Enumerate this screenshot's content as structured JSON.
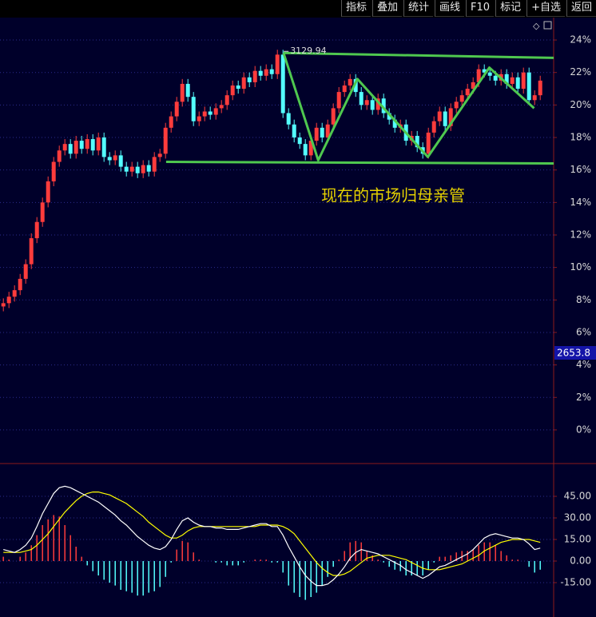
{
  "toolbar": [
    "指标",
    "叠加",
    "统计",
    "画线",
    "F10",
    "标记",
    "+自选",
    "返回"
  ],
  "chart_data": [
    {
      "type": "candlestick",
      "annotation": "现在的市场归母亲管",
      "peak_label": "3129.94",
      "price_tag": "2653.8",
      "up_color": "#ff3c3c",
      "down_color": "#54ffff",
      "grid": true,
      "xlim": [
        -0.6,
        98.4
      ],
      "ylim": [
        -2.07,
        25.38
      ],
      "yticks": [
        {
          "value": 0,
          "label": "0%"
        },
        {
          "value": 2,
          "label": "2%"
        },
        {
          "value": 4,
          "label": "4%"
        },
        {
          "value": 6,
          "label": "6%"
        },
        {
          "value": 8,
          "label": "8%"
        },
        {
          "value": 10,
          "label": "10%"
        },
        {
          "value": 12,
          "label": "12%"
        },
        {
          "value": 14,
          "label": "14%"
        },
        {
          "value": 16,
          "label": "16%"
        },
        {
          "value": 18,
          "label": "18%"
        },
        {
          "value": 20,
          "label": "20%"
        },
        {
          "value": 22,
          "label": "22%"
        },
        {
          "value": 24,
          "label": "24%"
        }
      ],
      "open": [
        7.6,
        7.8,
        8.2,
        8.6,
        9.3,
        10.2,
        11.8,
        12.8,
        14.0,
        15.3,
        16.5,
        17.2,
        17.6,
        17.0,
        17.8,
        17.3,
        17.9,
        17.2,
        18.0,
        16.8,
        16.6,
        16.9,
        16.2,
        15.9,
        16.2,
        15.8,
        16.3,
        15.9,
        16.8,
        17.0,
        18.6,
        19.3,
        20.2,
        21.3,
        20.5,
        19.0,
        19.3,
        19.6,
        19.4,
        19.8,
        20.0,
        20.6,
        21.2,
        21.0,
        21.7,
        21.4,
        22.1,
        21.8,
        22.2,
        21.9,
        23.1,
        19.5,
        18.8,
        18.0,
        17.6,
        16.9,
        17.8,
        18.6,
        18.0,
        18.8,
        19.8,
        20.8,
        21.2,
        21.6,
        20.8,
        20.0,
        20.3,
        19.7,
        20.4,
        19.5,
        19.1,
        18.6,
        18.8,
        17.8,
        18.1,
        17.4,
        17.0,
        18.3,
        19.0,
        19.6,
        18.7,
        19.8,
        20.2,
        20.6,
        21.0,
        21.4,
        22.2,
        22.0,
        21.8,
        21.5,
        21.9,
        21.3,
        21.7,
        21.0,
        22.0,
        20.3,
        20.6
      ],
      "high": [
        8.1,
        8.5,
        8.9,
        9.6,
        10.5,
        12.1,
        13.1,
        14.3,
        15.6,
        16.8,
        17.5,
        17.9,
        17.9,
        18.1,
        18.1,
        18.2,
        18.2,
        18.3,
        18.3,
        17.1,
        17.2,
        17.2,
        16.5,
        16.5,
        16.5,
        16.6,
        16.6,
        17.1,
        17.3,
        18.9,
        19.6,
        20.5,
        21.6,
        21.6,
        20.8,
        19.6,
        19.9,
        19.9,
        20.1,
        20.3,
        20.9,
        21.5,
        21.5,
        22.0,
        22.0,
        22.4,
        22.4,
        22.5,
        22.5,
        23.4,
        23.4,
        19.8,
        19.1,
        18.3,
        17.9,
        18.1,
        18.9,
        18.9,
        19.1,
        20.1,
        21.1,
        21.5,
        21.9,
        21.9,
        21.1,
        20.6,
        20.6,
        20.7,
        20.7,
        19.8,
        19.4,
        19.1,
        19.1,
        18.4,
        18.4,
        17.7,
        18.6,
        19.3,
        19.9,
        19.9,
        20.1,
        20.5,
        20.9,
        21.3,
        21.7,
        22.5,
        22.5,
        22.3,
        22.1,
        22.2,
        22.2,
        22.0,
        22.0,
        22.3,
        22.3,
        20.9,
        21.8
      ],
      "low": [
        7.3,
        7.5,
        7.9,
        8.3,
        9.0,
        9.9,
        11.5,
        12.5,
        13.7,
        15.0,
        16.2,
        16.9,
        16.7,
        16.7,
        17.0,
        17.0,
        16.9,
        16.9,
        16.5,
        16.3,
        16.3,
        15.9,
        15.6,
        15.6,
        15.5,
        15.5,
        15.6,
        15.6,
        16.5,
        16.7,
        18.3,
        19.0,
        19.9,
        20.2,
        18.7,
        18.7,
        19.0,
        19.1,
        19.1,
        19.5,
        19.7,
        20.3,
        20.7,
        20.7,
        21.1,
        21.1,
        21.5,
        21.5,
        21.6,
        21.6,
        19.2,
        18.5,
        17.7,
        17.3,
        16.6,
        16.6,
        17.5,
        17.7,
        17.7,
        18.5,
        19.5,
        20.5,
        20.9,
        20.5,
        19.7,
        19.7,
        19.4,
        19.4,
        19.2,
        18.8,
        18.3,
        18.3,
        17.5,
        17.5,
        17.1,
        16.7,
        16.7,
        18.0,
        18.7,
        18.4,
        18.4,
        19.5,
        19.9,
        20.3,
        20.7,
        21.1,
        21.7,
        21.5,
        21.2,
        21.2,
        21.0,
        21.0,
        20.7,
        20.7,
        20.0,
        20.0,
        20.3
      ],
      "close": [
        7.8,
        8.2,
        8.6,
        9.3,
        10.2,
        11.8,
        12.8,
        14.0,
        15.3,
        16.5,
        17.2,
        17.6,
        17.0,
        17.8,
        17.3,
        17.9,
        17.2,
        18.0,
        16.8,
        16.6,
        16.9,
        16.2,
        15.9,
        16.2,
        15.8,
        16.3,
        15.9,
        16.8,
        17.0,
        18.6,
        19.3,
        20.2,
        21.3,
        20.5,
        19.0,
        19.3,
        19.6,
        19.4,
        19.8,
        20.0,
        20.6,
        21.2,
        21.0,
        21.7,
        21.4,
        22.1,
        21.8,
        22.2,
        21.9,
        23.1,
        19.5,
        18.8,
        18.0,
        17.6,
        16.9,
        17.8,
        18.6,
        18.0,
        18.8,
        19.8,
        20.8,
        21.2,
        21.6,
        20.8,
        20.0,
        20.3,
        19.7,
        20.4,
        19.5,
        19.1,
        18.6,
        18.8,
        17.8,
        18.1,
        17.4,
        17.0,
        18.3,
        19.0,
        19.6,
        18.7,
        19.8,
        20.2,
        20.6,
        21.0,
        21.4,
        22.2,
        22.0,
        21.8,
        21.5,
        21.9,
        21.3,
        21.7,
        21.0,
        22.0,
        20.3,
        20.6,
        21.5
      ],
      "drawing_color": "#4fc84f",
      "drawings": [
        {
          "x": [
            50.1,
            98.4
          ],
          "y": [
            23.2,
            22.9
          ]
        },
        {
          "x": [
            29.1,
            98.4
          ],
          "y": [
            16.5,
            16.4
          ]
        },
        {
          "x": [
            50.1,
            56.3,
            63.3,
            75.9,
            86.9,
            94.9
          ],
          "y": [
            23.2,
            16.6,
            21.6,
            16.8,
            22.3,
            19.8
          ]
        }
      ]
    },
    {
      "type": "macd",
      "grid": true,
      "ylim": [
        -38.9,
        67.8
      ],
      "yticks": [
        {
          "value": -15,
          "label": "-15.00"
        },
        {
          "value": 0,
          "label": "0.00"
        },
        {
          "value": 15,
          "label": "15.00"
        },
        {
          "value": 30,
          "label": "30.00"
        },
        {
          "value": 45,
          "label": "45.00"
        }
      ],
      "dif_color": "#ffffff",
      "dea_color": "#ffff00",
      "up_color": "#ff3c3c",
      "down_color": "#54ffff",
      "dif": [
        8,
        7,
        6,
        8,
        11,
        16,
        24,
        33,
        40,
        47,
        51,
        52,
        51,
        49,
        47,
        45,
        43,
        41,
        38,
        35,
        32,
        28,
        25,
        21,
        17,
        14,
        11,
        9,
        8,
        10,
        15,
        22,
        28,
        30,
        27,
        25,
        24,
        24,
        23,
        23,
        22,
        22,
        22,
        23,
        24,
        25,
        26,
        26,
        24,
        24,
        18,
        10,
        3,
        -4,
        -10,
        -14,
        -17,
        -17,
        -16,
        -13,
        -9,
        -4,
        2,
        6,
        8,
        7,
        6,
        5,
        3,
        1,
        -1,
        -3,
        -6,
        -8,
        -10,
        -12,
        -10,
        -7,
        -4,
        -3,
        -1,
        1,
        3,
        5,
        8,
        12,
        16,
        18,
        19,
        18,
        17,
        16,
        16,
        15,
        12,
        8,
        9
      ],
      "dea": [
        6,
        6,
        6,
        6,
        7,
        8,
        11,
        15,
        19,
        24,
        29,
        34,
        38,
        42,
        45,
        47,
        48,
        48,
        47,
        46,
        44,
        42,
        40,
        37,
        34,
        31,
        27,
        24,
        21,
        18,
        16,
        16,
        18,
        21,
        23,
        24,
        24,
        24,
        24,
        24,
        24,
        24,
        24,
        24,
        24,
        24,
        25,
        25,
        25,
        25,
        24,
        22,
        19,
        14,
        9,
        4,
        -1,
        -5,
        -8,
        -10,
        -10,
        -9,
        -7,
        -4,
        -1,
        2,
        3,
        4,
        4,
        4,
        3,
        2,
        1,
        -1,
        -3,
        -5,
        -6,
        -6,
        -6,
        -5,
        -4,
        -3,
        -2,
        0,
        2,
        4,
        7,
        9,
        11,
        13,
        14,
        15,
        15,
        15,
        15,
        14,
        13
      ],
      "hist": [
        3,
        1,
        0,
        3,
        6,
        11,
        18,
        25,
        29,
        32,
        31,
        25,
        18,
        10,
        3,
        -3,
        -7,
        -10,
        -13,
        -15,
        -17,
        -20,
        -21,
        -22,
        -24,
        -24,
        -22,
        -21,
        -18,
        -11,
        -1,
        8,
        14,
        13,
        6,
        1,
        0,
        0,
        -1,
        -1,
        -3,
        -3,
        -3,
        -1,
        0,
        1,
        1,
        1,
        -1,
        -1,
        -8,
        -17,
        -22,
        -25,
        -27,
        -25,
        -22,
        -17,
        -11,
        -4,
        1,
        7,
        13,
        14,
        13,
        7,
        4,
        1,
        -1,
        -4,
        -6,
        -7,
        -10,
        -10,
        -10,
        -10,
        -6,
        -1,
        3,
        3,
        4,
        6,
        7,
        7,
        8,
        11,
        13,
        13,
        11,
        7,
        4,
        1,
        1,
        0,
        -4,
        -8,
        -6
      ]
    }
  ]
}
